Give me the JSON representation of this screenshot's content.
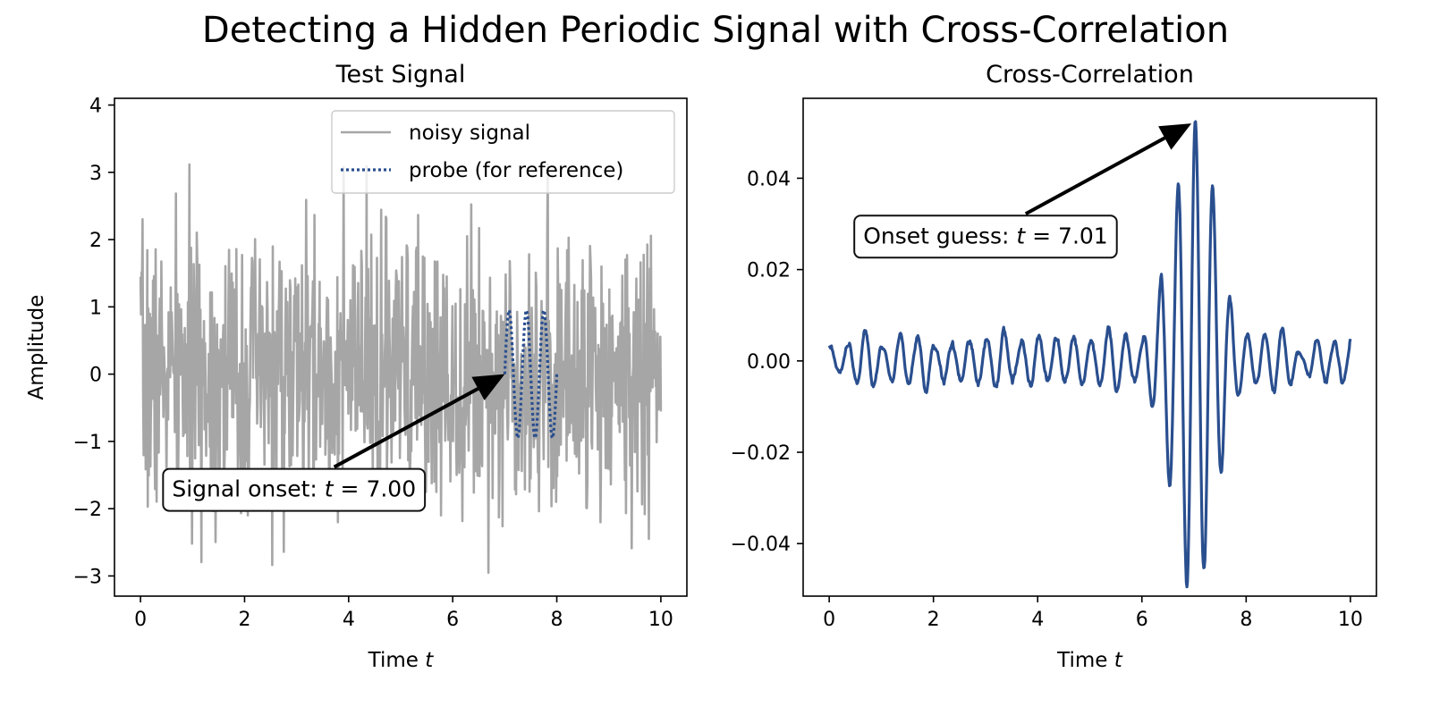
{
  "figure": {
    "suptitle": "Detecting a Hidden Periodic Signal with Cross-Correlation"
  },
  "colors": {
    "noisy": "#a6a6a6",
    "probe": "#2a4f8f",
    "xcorr": "#2a4f8f",
    "axes": "#000000"
  },
  "chart_data": [
    {
      "type": "line",
      "title": "Test Signal",
      "xlabel_prefix": "Time ",
      "xlabel_var": "t",
      "ylabel": "Amplitude",
      "xlim": [
        -0.5,
        10.5
      ],
      "ylim": [
        -3.3,
        4.1
      ],
      "xticks": [
        0,
        2,
        4,
        6,
        8,
        10
      ],
      "yticks": [
        -3,
        -2,
        -1,
        0,
        1,
        2,
        3,
        4
      ],
      "legend": {
        "position": "upper right",
        "entries": [
          "noisy signal",
          "probe (for reference)"
        ]
      },
      "series": [
        {
          "name": "noisy signal",
          "style": "solid",
          "generator": {
            "type": "noise",
            "x_start": 0,
            "x_end": 10,
            "n": 1000,
            "mean": 0,
            "std": 1.0,
            "clip": [
              -2.95,
              3.35
            ],
            "seed": 7
          }
        },
        {
          "name": "probe (for reference)",
          "style": "dotted",
          "generator": {
            "type": "sine",
            "x_start": 7.0,
            "x_end": 8.0,
            "n": 120,
            "amplitude": 0.95,
            "cycles": 3,
            "offset_y": 0
          }
        }
      ],
      "annotation": {
        "label": "Signal onset: ",
        "var": "t",
        "value_text": " = 7.00",
        "arrow_to": [
          7.0,
          0.0
        ],
        "text_at": [
          2.95,
          -1.7
        ]
      }
    },
    {
      "type": "line",
      "title": "Cross-Correlation",
      "xlabel_prefix": "Time ",
      "xlabel_var": "t",
      "ylabel": "",
      "xlim": [
        -0.5,
        10.5
      ],
      "ylim": [
        -0.0515,
        0.0575
      ],
      "xticks": [
        0,
        2,
        4,
        6,
        8,
        10
      ],
      "yticks": [
        -0.04,
        -0.02,
        0.0,
        0.02,
        0.04
      ],
      "ytick_labels": [
        "−0.04",
        "−0.02",
        "0.00",
        "0.02",
        "0.04"
      ],
      "series": [
        {
          "name": "",
          "style": "solid",
          "generator": {
            "type": "xcorr",
            "x_start": 0,
            "x_end": 10,
            "n": 900,
            "freq": 3.0,
            "phase": -5.2,
            "packet_center": 7.0,
            "packet_amp": 0.047,
            "packet_width": 0.55,
            "background_amp": 0.0085,
            "seed": 3
          }
        }
      ],
      "annotation": {
        "label": "Onset guess: ",
        "var": "t",
        "value_text": " = 7.01",
        "arrow_to": [
          6.95,
          0.052
        ],
        "text_at": [
          3.0,
          0.0275
        ]
      }
    }
  ]
}
